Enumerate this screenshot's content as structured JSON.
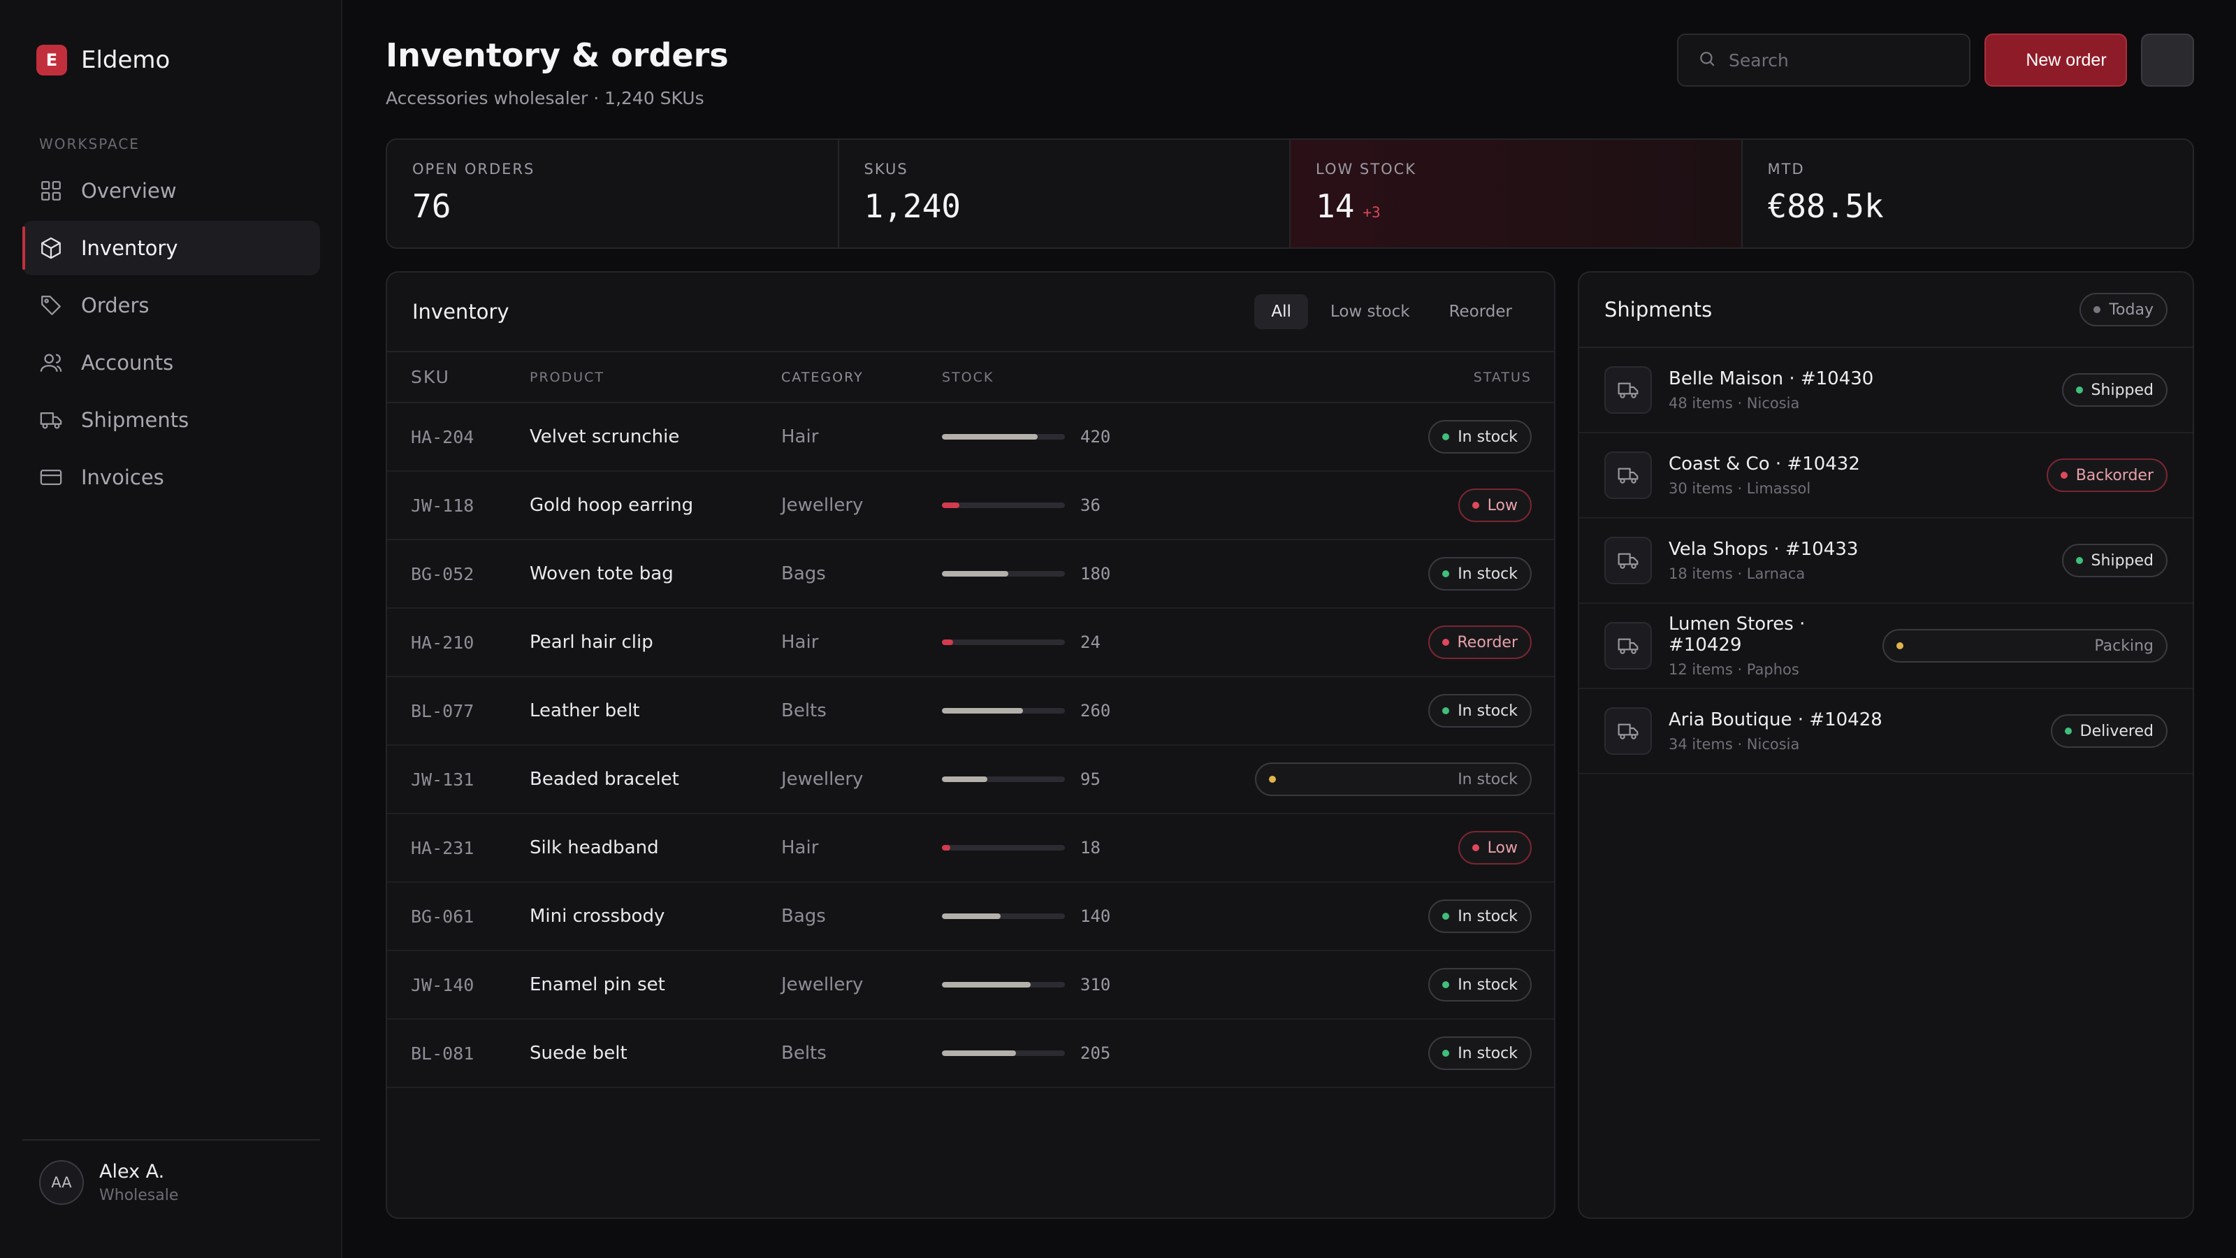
{
  "app": {
    "name": "Eldemo",
    "logo_letter": "E",
    "accent": "#c22f3c"
  },
  "sidebar": {
    "section_label": "WORKSPACE",
    "items": [
      {
        "label": "Overview",
        "icon": "grid-icon"
      },
      {
        "label": "Inventory",
        "icon": "box-icon",
        "active": true
      },
      {
        "label": "Orders",
        "icon": "tag-icon"
      },
      {
        "label": "Accounts",
        "icon": "users-icon"
      },
      {
        "label": "Shipments",
        "icon": "truck-icon"
      },
      {
        "label": "Invoices",
        "icon": "card-icon"
      }
    ],
    "user": {
      "initials": "AA",
      "name": "Alex A.",
      "role": "Wholesale"
    }
  },
  "header": {
    "title": "Inventory & orders",
    "subtitle": "Accessories wholesaler · 1,240 SKUs",
    "search_placeholder": "Search",
    "new_order_label": "New order"
  },
  "kpis": [
    {
      "label": "OPEN ORDERS",
      "value": "76",
      "delta": ""
    },
    {
      "label": "SKUS",
      "value": "1,240",
      "delta": ""
    },
    {
      "label": "LOW STOCK",
      "value": "14",
      "delta": "+3"
    },
    {
      "label": "MTD",
      "value": "€88.5k",
      "delta": ""
    }
  ],
  "inventory": {
    "title": "Inventory",
    "filters": [
      "All",
      "Low stock",
      "Reorder"
    ],
    "active_filter": "All",
    "columns": [
      "SKU",
      "PRODUCT",
      "CATEGORY",
      "STOCK",
      "STATUS"
    ],
    "rows": [
      {
        "sku": "HA-204",
        "product": "Velvet scrunchie",
        "category": "Hair",
        "stock": "420",
        "level": 0.78,
        "status": "In stock",
        "tone": "ok"
      },
      {
        "sku": "JW-118",
        "product": "Gold hoop earring",
        "category": "Jewellery",
        "stock": "36",
        "level": 0.14,
        "status": "Low",
        "tone": "red"
      },
      {
        "sku": "BG-052",
        "product": "Woven tote bag",
        "category": "Bags",
        "stock": "180",
        "level": 0.54,
        "status": "In stock",
        "tone": "ok"
      },
      {
        "sku": "HA-210",
        "product": "Pearl hair clip",
        "category": "Hair",
        "stock": "24",
        "level": 0.09,
        "status": "Reorder",
        "tone": "red"
      },
      {
        "sku": "BL-077",
        "product": "Leather belt",
        "category": "Belts",
        "stock": "260",
        "level": 0.66,
        "status": "In stock",
        "tone": "ok"
      },
      {
        "sku": "JW-131",
        "product": "Beaded bracelet",
        "category": "Jewellery",
        "stock": "95",
        "level": 0.37,
        "status": "In stock",
        "tone": "wide"
      },
      {
        "sku": "HA-231",
        "product": "Silk headband",
        "category": "Hair",
        "stock": "18",
        "level": 0.07,
        "status": "Low",
        "tone": "red"
      },
      {
        "sku": "BG-061",
        "product": "Mini crossbody",
        "category": "Bags",
        "stock": "140",
        "level": 0.48,
        "status": "In stock",
        "tone": "ok"
      },
      {
        "sku": "JW-140",
        "product": "Enamel pin set",
        "category": "Jewellery",
        "stock": "310",
        "level": 0.72,
        "status": "In stock",
        "tone": "ok"
      },
      {
        "sku": "BL-081",
        "product": "Suede belt",
        "category": "Belts",
        "stock": "205",
        "level": 0.6,
        "status": "In stock",
        "tone": "ok"
      }
    ]
  },
  "shipments": {
    "title": "Shipments",
    "range_label": "Today",
    "items": [
      {
        "name": "Belle Maison · #10430",
        "meta": "48 items · Nicosia",
        "status": "Shipped",
        "tone": "ok"
      },
      {
        "name": "Coast & Co · #10432",
        "meta": "30 items · Limassol",
        "status": "Backorder",
        "tone": "red"
      },
      {
        "name": "Vela Shops · #10433",
        "meta": "18 items · Larnaca",
        "status": "Shipped",
        "tone": "ok"
      },
      {
        "name": "Lumen Stores · #10429",
        "meta": "12 items · Paphos",
        "status": "Packing",
        "tone": "wide"
      },
      {
        "name": "Aria Boutique · #10428",
        "meta": "34 items · Nicosia",
        "status": "Delivered",
        "tone": "ok"
      }
    ]
  }
}
